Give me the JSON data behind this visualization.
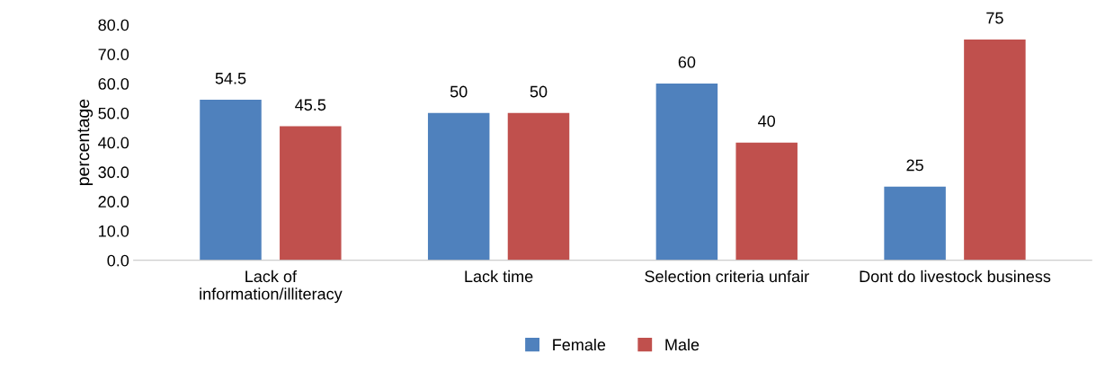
{
  "chart_data": {
    "type": "bar",
    "ylabel": "percentage",
    "categories": [
      "Lack of\ninformation/illiteracy",
      "Lack time",
      "Selection criteria unfair",
      "Dont do livestock business"
    ],
    "series": [
      {
        "name": "Female",
        "color": "#4f81bd",
        "values": [
          54.5,
          50,
          60,
          25
        ]
      },
      {
        "name": "Male",
        "color": "#c0504d",
        "values": [
          45.5,
          50,
          40,
          75
        ]
      }
    ],
    "ylim": [
      0,
      80
    ],
    "yticks": [
      {
        "value": 0,
        "label": "0.0"
      },
      {
        "value": 10,
        "label": "10.0"
      },
      {
        "value": 20,
        "label": "20.0"
      },
      {
        "value": 30,
        "label": "30.0"
      },
      {
        "value": 40,
        "label": "40.0"
      },
      {
        "value": 50,
        "label": "50.0"
      },
      {
        "value": 60,
        "label": "60.0"
      },
      {
        "value": 70,
        "label": "70.0"
      },
      {
        "value": 80,
        "label": "80.0"
      }
    ],
    "data_labels": true,
    "legend": "bottom",
    "grid": false
  }
}
